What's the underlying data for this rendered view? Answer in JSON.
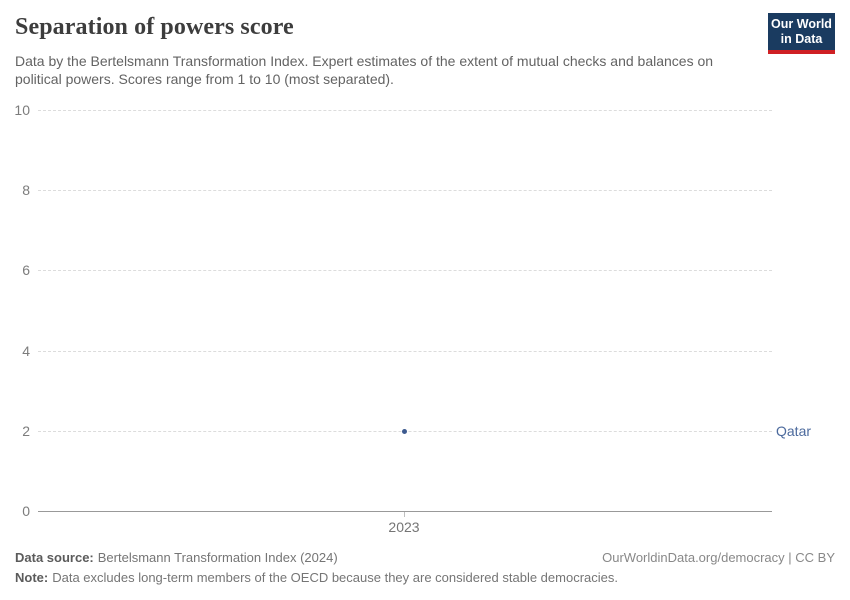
{
  "header": {
    "title": "Separation of powers score",
    "subtitle": "Data by the Bertelsmann Transformation Index. Expert estimates of the extent of mutual checks and balances on political powers. Scores range from 1 to 10 (most separated).",
    "logo": {
      "line1": "Our World",
      "line2": "in Data"
    }
  },
  "chart_data": {
    "type": "scatter",
    "title": "Separation of powers score",
    "x": [
      2023
    ],
    "xticks": [
      "2023"
    ],
    "series": [
      {
        "name": "Qatar",
        "values": [
          2
        ]
      }
    ],
    "xlabel": "",
    "ylabel": "",
    "ylim": [
      0,
      10
    ],
    "yticks": [
      0,
      2,
      4,
      6,
      8,
      10
    ],
    "grid": "horizontal-dashed",
    "legend_position": "right-of-point",
    "point_color": "#3d5a8f",
    "label_color": "#4c6a9d"
  },
  "footer": {
    "source_label": "Data source:",
    "source_text": "Bertelsmann Transformation Index (2024)",
    "right_text": "OurWorldinData.org/democracy | CC BY",
    "note_label": "Note:",
    "note_text": "Data excludes long-term members of the OECD because they are considered stable democracies."
  },
  "colors": {
    "title": "#3d3d3d",
    "subtitle": "#636363",
    "gridline": "#dcdcdc",
    "axis": "#999999",
    "tick_label": "#7c7c7c",
    "logo_background": "#1a3b60",
    "logo_underline": "#cf2024",
    "point": "#3d5a8f",
    "entity_label": "#4c6a9d"
  }
}
